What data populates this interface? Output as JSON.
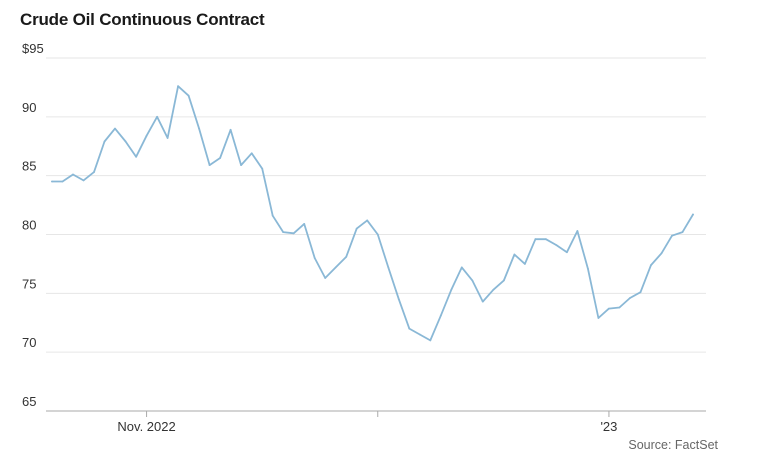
{
  "header": {
    "title": "Crude Oil Continuous Contract"
  },
  "footer": {
    "source": "Source: FactSet"
  },
  "colors": {
    "line": "#8ab8d6",
    "grid": "#e6e6e6",
    "text": "#333333"
  },
  "chart_data": {
    "type": "line",
    "title": "Crude Oil Continuous Contract",
    "xlabel": "",
    "ylabel": "",
    "ylim": [
      65,
      95
    ],
    "y_ticks": [
      95,
      90,
      85,
      80,
      75,
      70,
      65
    ],
    "y_tick_labels": [
      "$95",
      "90",
      "85",
      "80",
      "75",
      "70",
      "65"
    ],
    "x_ticks": [
      {
        "index": 9,
        "label": "Nov. 2022"
      },
      {
        "index": 31,
        "label": ""
      },
      {
        "index": 53,
        "label": "'23"
      }
    ],
    "grid": true,
    "legend": "none",
    "series": [
      {
        "values": [
          84.5,
          84.5,
          85.1,
          84.6,
          85.3,
          87.9,
          89.0,
          87.9,
          86.6,
          88.4,
          90.0,
          88.2,
          92.6,
          91.8,
          89.0,
          85.9,
          86.5,
          88.9,
          85.9,
          86.9,
          85.6,
          81.6,
          80.2,
          80.1,
          80.9,
          78.0,
          76.3,
          77.2,
          78.1,
          80.5,
          81.2,
          80.0,
          77.2,
          74.5,
          72.0,
          71.5,
          71.0,
          73.1,
          75.3,
          77.2,
          76.1,
          74.3,
          75.3,
          76.1,
          78.3,
          77.5,
          79.6,
          79.6,
          79.1,
          78.5,
          80.3,
          77.1,
          72.9,
          73.7,
          73.8,
          74.6,
          75.1,
          77.4,
          78.4,
          79.9,
          80.2,
          81.7
        ]
      }
    ]
  }
}
